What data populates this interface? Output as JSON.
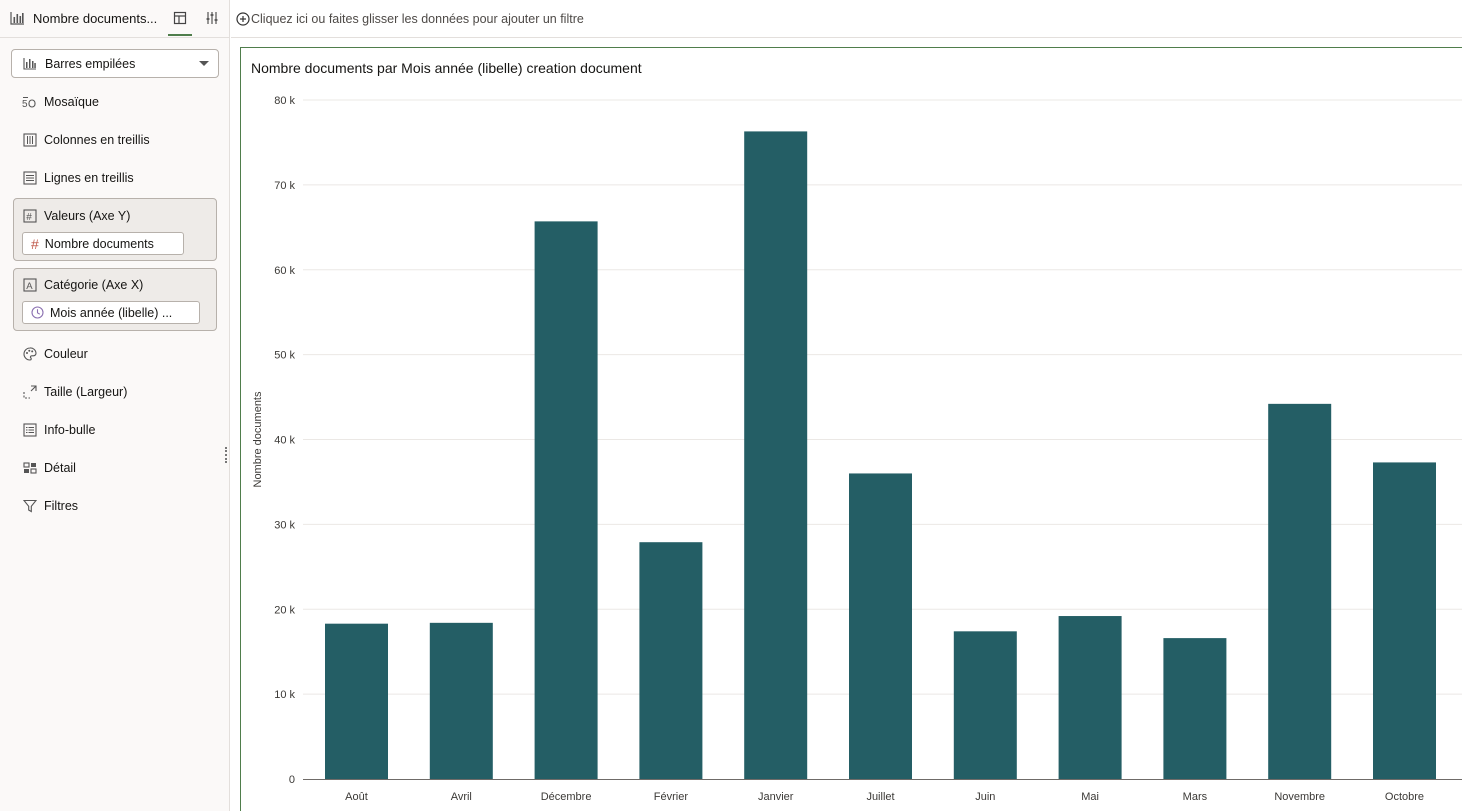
{
  "header": {
    "viz_title": "Nombre documents..."
  },
  "filter_bar": {
    "hint": "Cliquez ici ou faites glisser les données pour ajouter un filtre"
  },
  "grammar": {
    "chart_type": "Barres empilées",
    "mosaique": "Mosaïque",
    "colonnes": "Colonnes en treillis",
    "lignes": "Lignes en treillis",
    "valeurs": "Valeurs (Axe Y)",
    "valeurs_pill": "Nombre documents",
    "categorie": "Catégorie (Axe X)",
    "categorie_pill": "Mois année (libelle) ...",
    "couleur": "Couleur",
    "taille": "Taille (Largeur)",
    "infobulle": "Info-bulle",
    "detail": "Détail",
    "filtres": "Filtres"
  },
  "colors": {
    "bar": "#245e65",
    "accent": "#4f7d4b"
  },
  "chart_data": {
    "type": "bar",
    "title": "Nombre documents par Mois année (libelle) creation document",
    "ylabel": "Nombre documents",
    "xlabel": "",
    "ylim": [
      0,
      80000
    ],
    "yticks": [
      0,
      10000,
      20000,
      30000,
      40000,
      50000,
      60000,
      70000,
      80000
    ],
    "ytick_labels": [
      "0",
      "10 k",
      "20 k",
      "30 k",
      "40 k",
      "50 k",
      "60 k",
      "70 k",
      "80 k"
    ],
    "grid": true,
    "categories": [
      "Août",
      "Avril",
      "Décembre",
      "Février",
      "Janvier",
      "Juillet",
      "Juin",
      "Mai",
      "Mars",
      "Novembre",
      "Octobre"
    ],
    "values": [
      18300,
      18400,
      65700,
      27900,
      76300,
      36000,
      17400,
      19200,
      16600,
      44200,
      37300
    ]
  }
}
